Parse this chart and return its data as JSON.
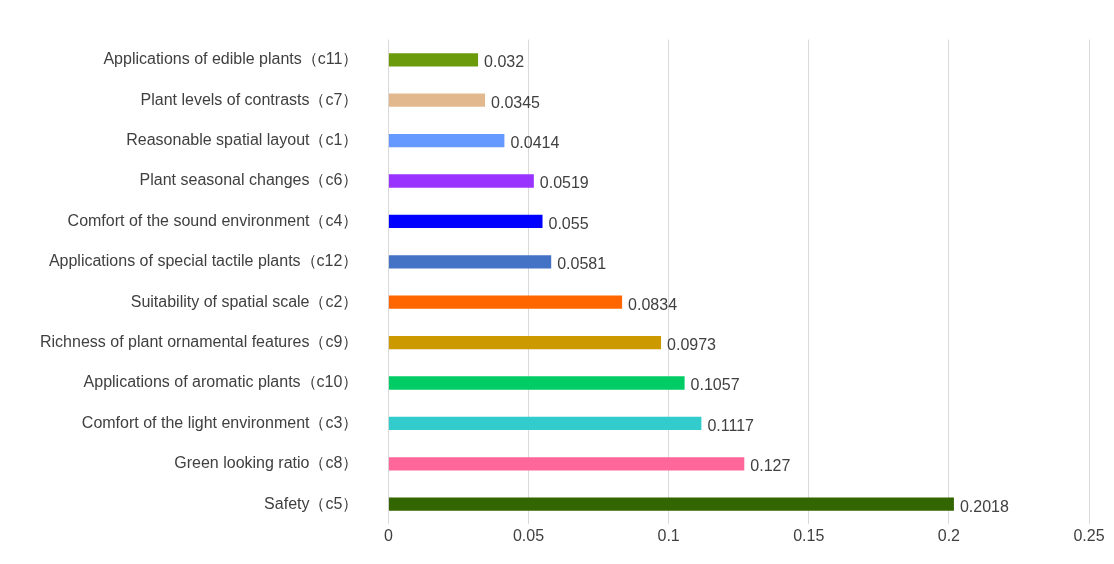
{
  "chart_data": {
    "type": "bar",
    "orientation": "horizontal",
    "categories": [
      "Applications of edible plants（c11）",
      "Plant levels of contrasts（c7）",
      "Reasonable spatial layout（c1）",
      "Plant seasonal changes（c6）",
      "Comfort of the sound environment（c4）",
      "Applications of special tactile plants（c12）",
      "Suitability of spatial scale（c2）",
      "Richness of plant ornamental features（c9）",
      "Applications of aromatic plants（c10）",
      "Comfort of the light environment（c3）",
      "Green looking ratio（c8）",
      "Safety（c5）"
    ],
    "values": [
      0.032,
      0.0345,
      0.0414,
      0.0519,
      0.055,
      0.0581,
      0.0834,
      0.0973,
      0.1057,
      0.1117,
      0.127,
      0.2018
    ],
    "colors": [
      "#6b9b0b",
      "#e2b98f",
      "#6699ff",
      "#9933ff",
      "#0000ff",
      "#4472c4",
      "#ff6600",
      "#cc9900",
      "#00cc66",
      "#33cccc",
      "#ff6699",
      "#336600"
    ],
    "xlim": [
      0,
      0.25
    ],
    "xticks": [
      0,
      0.05,
      0.1,
      0.15,
      0.2,
      0.25
    ],
    "grid": "x",
    "data_labels": true
  }
}
